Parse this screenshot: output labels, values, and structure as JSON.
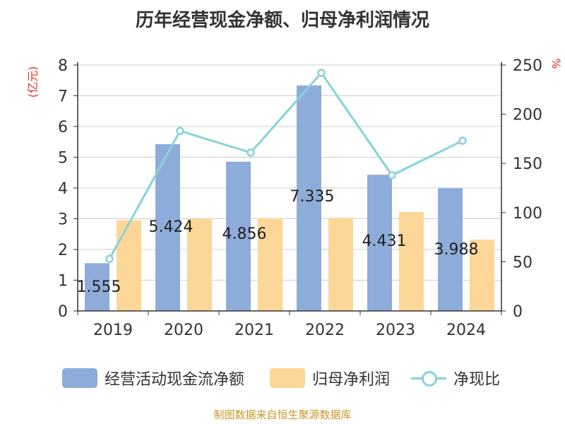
{
  "chart_data": {
    "type": "bar",
    "title": "历年经营现金净额、归母净利润情况",
    "categories": [
      "2019",
      "2020",
      "2021",
      "2022",
      "2023",
      "2024"
    ],
    "ylabel": "(亿元)",
    "y2label": "%",
    "ylim": [
      0,
      8
    ],
    "y2lim": [
      0,
      250
    ],
    "yticks": [
      "0",
      "1",
      "2",
      "3",
      "4",
      "5",
      "6",
      "7",
      "8"
    ],
    "y2ticks": [
      "0",
      "50",
      "100",
      "150",
      "200",
      "250"
    ],
    "grid": true,
    "legend_position": "bottom",
    "series": [
      {
        "name": "经营活动现金流净额",
        "type": "bar",
        "axis": "left",
        "color": "#8eacd9",
        "values": [
          1.555,
          5.424,
          4.856,
          7.335,
          4.431,
          3.988
        ],
        "labels": [
          "1.555",
          "5.424",
          "4.856",
          "7.335",
          "4.431",
          "3.988"
        ]
      },
      {
        "name": "归母净利润",
        "type": "bar",
        "axis": "left",
        "color": "#fdd797",
        "values": [
          2.95,
          3.0,
          3.02,
          3.03,
          3.22,
          2.32
        ]
      },
      {
        "name": "净现比",
        "type": "line",
        "axis": "right",
        "color": "#88d3d8",
        "values": [
          53,
          183,
          161,
          242,
          138,
          173
        ]
      }
    ]
  },
  "source": {
    "text": "制图数据来自恒生聚源数据库",
    "color": "#c8982c"
  },
  "colors": {
    "axis_label": "#e0302c"
  }
}
